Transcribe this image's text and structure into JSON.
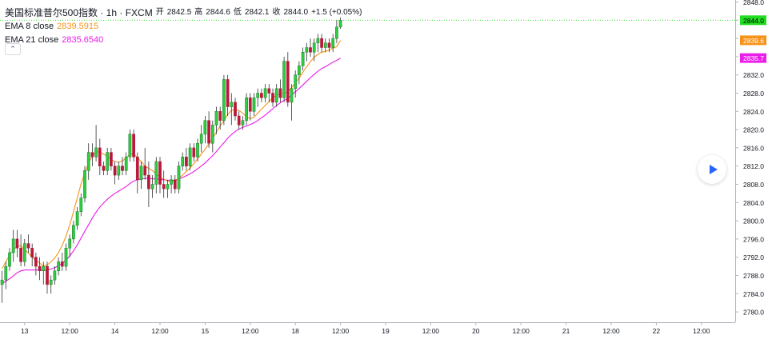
{
  "legend": {
    "symbol": "美国标准普尔500指数 · 1h · FXCM",
    "open_label": "开",
    "open": "2842.5",
    "high_label": "高",
    "high": "2844.6",
    "low_label": "低",
    "low": "2842.1",
    "close_label": "收",
    "close": "2844.0",
    "change": "+1.5 (+0.05%)",
    "ema8_label": "EMA 8 close",
    "ema8_value": "2839.5915",
    "ema21_label": "EMA 21 close",
    "ema21_value": "2835.6540",
    "collapse_icon": "chevron-up-icon"
  },
  "play_button_icon": "play-icon",
  "colors": {
    "up": "#26a69a",
    "up_fill": "#2ecc40",
    "down": "#b8193a",
    "ema8": "#f7931a",
    "ema21": "#e91ee9",
    "price_badge": "#22dd22",
    "ema8_badge": "#f7931a",
    "ema21_badge": "#e91ee9"
  },
  "price_badges": [
    {
      "label": "2844.0",
      "value": 2844.0,
      "color": "#22dd22"
    },
    {
      "label": "2839.6",
      "value": 2839.6,
      "color": "#f7931a"
    },
    {
      "label": "2835.7",
      "value": 2835.7,
      "color": "#e91ee9"
    }
  ],
  "chart_data": {
    "type": "candlestick",
    "y_ticks": [
      "2848.0",
      "2844.0",
      "2840.0",
      "2836.0",
      "2832.0",
      "2828.0",
      "2824.0",
      "2820.0",
      "2816.0",
      "2812.0",
      "2808.0",
      "2804.0",
      "2800.0",
      "2796.0",
      "2792.0",
      "2788.0",
      "2784.0",
      "2780.0"
    ],
    "ylim": [
      2778,
      2848
    ],
    "x_ticks": [
      "13",
      "12:00",
      "14",
      "12:00",
      "15",
      "12:00",
      "18",
      "12:00",
      "19",
      "12:00",
      "20",
      "12:00",
      "21",
      "12:00",
      "22",
      "12:00"
    ],
    "x_tick_index": [
      6,
      18,
      30,
      42,
      54,
      66,
      78,
      90,
      102,
      114,
      126,
      138,
      150,
      162,
      174,
      186
    ],
    "series": [
      {
        "name": "EMA 8 close",
        "values": [
          2789.5,
          2791,
          2792.5,
          2793.6,
          2794.4,
          2794.5,
          2793.7,
          2792.9,
          2792,
          2791.3,
          2790.7,
          2790,
          2790.3,
          2791,
          2791.8,
          2793,
          2794.6,
          2796.6,
          2799.1,
          2802,
          2805,
          2808.1,
          2810.5,
          2812.7,
          2814.2,
          2815.1,
          2815.1,
          2814.6,
          2814.2,
          2813.4,
          2813,
          2812.8,
          2813.1,
          2813.8,
          2814.6,
          2814.7,
          2813.8,
          2813,
          2812,
          2811.5,
          2811,
          2810.3,
          2809.6,
          2809.1,
          2808.7,
          2808.6,
          2808.8,
          2809.3,
          2810,
          2810.8,
          2811.6,
          2812.5,
          2813.6,
          2814.6,
          2815.7,
          2816.9,
          2818,
          2819.5,
          2820.8,
          2822,
          2823.3,
          2824.2,
          2824.4,
          2824.2,
          2823.6,
          2822.8,
          2822.4,
          2822.7,
          2823.6,
          2824.5,
          2825.3,
          2826.2,
          2827,
          2827.5,
          2827.9,
          2828,
          2828.3,
          2829.2,
          2830.3,
          2831.3,
          2832.6,
          2833.8,
          2834.9,
          2835.9,
          2836.5,
          2837,
          2837.1,
          2837.5,
          2837.9,
          2838.2,
          2839.6
        ]
      },
      {
        "name": "EMA 21 close",
        "values": [
          2786.2,
          2786.7,
          2787.3,
          2787.9,
          2788.6,
          2789,
          2789.2,
          2789.2,
          2789.2,
          2789.2,
          2789.2,
          2789.1,
          2789.2,
          2789.4,
          2789.7,
          2790.1,
          2790.7,
          2791.3,
          2792.3,
          2793.4,
          2794.7,
          2796.2,
          2797.7,
          2799.1,
          2800.6,
          2801.9,
          2803,
          2803.9,
          2804.7,
          2805.4,
          2806,
          2806.5,
          2807,
          2807.5,
          2808.2,
          2808.7,
          2809,
          2809.2,
          2809.3,
          2809.3,
          2809.2,
          2809.2,
          2809.1,
          2809,
          2808.9,
          2808.9,
          2808.9,
          2809.2,
          2809.5,
          2809.9,
          2810.3,
          2810.8,
          2811.4,
          2812,
          2812.7,
          2813.5,
          2814.3,
          2815.2,
          2816.2,
          2817.1,
          2818.1,
          2818.9,
          2819.6,
          2820.1,
          2820.5,
          2820.8,
          2821.1,
          2821.5,
          2822,
          2822.6,
          2823.2,
          2823.9,
          2824.6,
          2825.3,
          2825.9,
          2826.4,
          2826.9,
          2827.6,
          2828.3,
          2829,
          2829.8,
          2830.6,
          2831.4,
          2832.1,
          2832.8,
          2833.4,
          2833.8,
          2834.3,
          2834.8,
          2835.2,
          2835.7
        ]
      }
    ],
    "ohlc": [
      [
        2786,
        2789,
        2782,
        2787
      ],
      [
        2787,
        2791,
        2785,
        2790
      ],
      [
        2790,
        2794,
        2789,
        2793
      ],
      [
        2793,
        2798,
        2791,
        2796
      ],
      [
        2796,
        2798,
        2792,
        2794
      ],
      [
        2794,
        2797,
        2790,
        2791
      ],
      [
        2791,
        2796,
        2790,
        2795
      ],
      [
        2795,
        2797,
        2793,
        2794
      ],
      [
        2794,
        2795,
        2790,
        2792
      ],
      [
        2792,
        2793,
        2788,
        2790
      ],
      [
        2790,
        2792,
        2787,
        2789
      ],
      [
        2789,
        2791,
        2786,
        2790
      ],
      [
        2790,
        2791,
        2784,
        2786
      ],
      [
        2786,
        2788,
        2784,
        2787
      ],
      [
        2787,
        2790,
        2786,
        2789
      ],
      [
        2789,
        2792,
        2788,
        2791
      ],
      [
        2791,
        2793,
        2789,
        2790
      ],
      [
        2790,
        2795,
        2789,
        2794
      ],
      [
        2794,
        2797,
        2792,
        2796
      ],
      [
        2796,
        2800,
        2795,
        2799
      ],
      [
        2799,
        2803,
        2798,
        2802
      ],
      [
        2802,
        2806,
        2801,
        2805
      ],
      [
        2805,
        2812,
        2804,
        2811
      ],
      [
        2811,
        2817,
        2809,
        2815
      ],
      [
        2815,
        2817,
        2812,
        2814
      ],
      [
        2814,
        2821,
        2813,
        2816
      ],
      [
        2816,
        2818,
        2810,
        2812
      ],
      [
        2812,
        2813,
        2810,
        2811
      ],
      [
        2811,
        2816,
        2810,
        2815
      ],
      [
        2815,
        2816,
        2811,
        2812
      ],
      [
        2812,
        2813,
        2808,
        2810
      ],
      [
        2810,
        2813,
        2809,
        2812
      ],
      [
        2812,
        2814,
        2810,
        2811
      ],
      [
        2811,
        2815,
        2810,
        2814
      ],
      [
        2814,
        2820,
        2813,
        2819
      ],
      [
        2819,
        2820,
        2813,
        2814
      ],
      [
        2814,
        2815,
        2806,
        2809
      ],
      [
        2809,
        2813,
        2807,
        2812
      ],
      [
        2812,
        2816,
        2809,
        2810
      ],
      [
        2810,
        2813,
        2803,
        2807
      ],
      [
        2807,
        2810,
        2805,
        2808
      ],
      [
        2808,
        2814,
        2806,
        2813
      ],
      [
        2813,
        2814,
        2806,
        2808
      ],
      [
        2808,
        2811,
        2805,
        2807
      ],
      [
        2807,
        2809,
        2805,
        2808
      ],
      [
        2808,
        2810,
        2806,
        2809
      ],
      [
        2809,
        2810,
        2806,
        2807
      ],
      [
        2807,
        2813,
        2806,
        2812
      ],
      [
        2812,
        2815,
        2811,
        2814
      ],
      [
        2814,
        2816,
        2811,
        2812
      ],
      [
        2812,
        2817,
        2811,
        2816
      ],
      [
        2816,
        2817,
        2813,
        2814
      ],
      [
        2814,
        2818,
        2813,
        2817
      ],
      [
        2817,
        2821,
        2815,
        2819
      ],
      [
        2819,
        2823,
        2817,
        2822
      ],
      [
        2822,
        2824,
        2816,
        2817
      ],
      [
        2817,
        2822,
        2815,
        2821
      ],
      [
        2821,
        2825,
        2819,
        2824
      ],
      [
        2824,
        2825,
        2820,
        2822
      ],
      [
        2822,
        2832,
        2821,
        2831
      ],
      [
        2831,
        2832,
        2823,
        2825
      ],
      [
        2825,
        2828,
        2821,
        2826
      ],
      [
        2826,
        2827,
        2822,
        2823
      ],
      [
        2823,
        2824,
        2820,
        2821
      ],
      [
        2821,
        2823,
        2820,
        2822
      ],
      [
        2822,
        2828,
        2821,
        2827
      ],
      [
        2827,
        2828,
        2822,
        2824
      ],
      [
        2824,
        2828,
        2823,
        2827
      ],
      [
        2827,
        2829,
        2825,
        2828
      ],
      [
        2828,
        2829,
        2826,
        2827
      ],
      [
        2827,
        2830,
        2826,
        2829
      ],
      [
        2829,
        2830,
        2826,
        2828
      ],
      [
        2828,
        2829,
        2825,
        2826
      ],
      [
        2826,
        2830,
        2825,
        2829
      ],
      [
        2829,
        2831,
        2826,
        2827
      ],
      [
        2827,
        2836,
        2826,
        2835
      ],
      [
        2835,
        2837,
        2825,
        2826
      ],
      [
        2826,
        2830,
        2822,
        2829
      ],
      [
        2829,
        2833,
        2827,
        2832
      ],
      [
        2832,
        2835,
        2830,
        2834
      ],
      [
        2834,
        2838,
        2833,
        2837
      ],
      [
        2837,
        2839,
        2835,
        2838
      ],
      [
        2838,
        2840,
        2836,
        2837
      ],
      [
        2837,
        2840,
        2835,
        2839
      ],
      [
        2839,
        2841,
        2837,
        2840
      ],
      [
        2840,
        2841,
        2837,
        2838
      ],
      [
        2838,
        2840,
        2837,
        2839
      ],
      [
        2839,
        2840,
        2837,
        2838
      ],
      [
        2838,
        2841,
        2837,
        2840
      ],
      [
        2840,
        2844,
        2839,
        2842.5
      ],
      [
        2842.5,
        2844.6,
        2842.1,
        2844.0
      ]
    ]
  }
}
